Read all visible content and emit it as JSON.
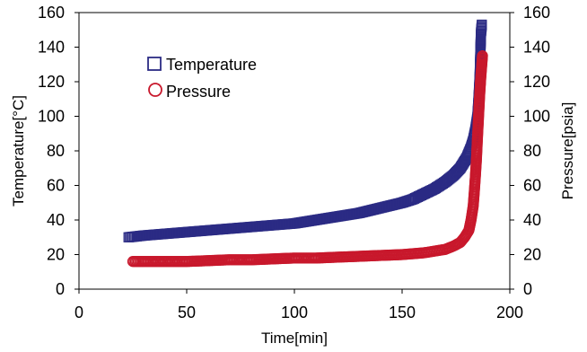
{
  "chart_data": {
    "type": "scatter",
    "xlabel": "Time[min]",
    "ylabel": "Temperature[°C]",
    "y2label": "Pressure[psia]",
    "xlim": [
      0,
      200
    ],
    "ylim": [
      0,
      160
    ],
    "y2lim": [
      0,
      160
    ],
    "xticks": [
      "0",
      "50",
      "100",
      "150",
      "200"
    ],
    "yticks": [
      "0",
      "20",
      "40",
      "60",
      "80",
      "100",
      "120",
      "140",
      "160"
    ],
    "y2ticks": [
      "0",
      "20",
      "40",
      "60",
      "80",
      "100",
      "120",
      "140",
      "160"
    ],
    "grid": false,
    "legend_position": "top-left",
    "series": [
      {
        "name": "Temperature",
        "axis": "left",
        "marker": "square-open",
        "color": "#2b2b84",
        "x": [
          23,
          30,
          40,
          50,
          60,
          70,
          80,
          90,
          100,
          110,
          120,
          130,
          140,
          150,
          155,
          160,
          165,
          170,
          174,
          177,
          180,
          182,
          183,
          184,
          185,
          185.5,
          186,
          186.3,
          186.6,
          187
        ],
        "y": [
          30,
          31,
          32,
          33,
          34,
          35,
          36,
          37,
          38,
          40,
          42,
          44,
          47,
          50,
          52,
          55,
          58,
          62,
          66,
          70,
          76,
          82,
          86,
          92,
          100,
          110,
          122,
          135,
          148,
          153
        ]
      },
      {
        "name": "Pressure",
        "axis": "right",
        "marker": "circle-open",
        "color": "#c8182c",
        "x": [
          25,
          30,
          40,
          50,
          60,
          70,
          80,
          90,
          100,
          110,
          120,
          130,
          140,
          150,
          160,
          165,
          170,
          174,
          177,
          179,
          181,
          182,
          183,
          183.5,
          184,
          184.5,
          185,
          185.5,
          186,
          186.5,
          187,
          187.3
        ],
        "y": [
          16,
          16,
          16,
          16,
          16.5,
          17,
          17,
          17.5,
          18,
          18,
          18.5,
          19,
          19.5,
          20,
          21,
          22,
          23,
          25,
          27,
          30,
          34,
          40,
          48,
          56,
          65,
          75,
          88,
          100,
          112,
          122,
          130,
          135
        ]
      }
    ]
  }
}
